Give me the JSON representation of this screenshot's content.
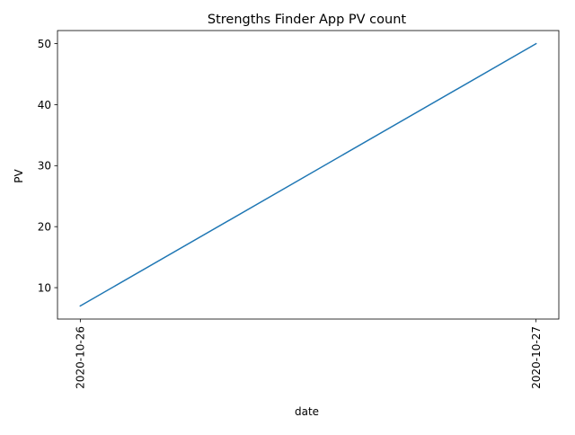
{
  "chart_data": {
    "type": "line",
    "title": "Strengths Finder App PV count",
    "xlabel": "date",
    "ylabel": "PV",
    "x": [
      "2020-10-26",
      "2020-10-27"
    ],
    "series": [
      {
        "values": [
          7,
          50
        ],
        "color": "#1f77b4"
      }
    ],
    "x_range": [
      "2020-10-26",
      "2020-10-27"
    ],
    "ylim": [
      4.85,
      52.15
    ],
    "yticks": [
      10,
      20,
      30,
      40,
      50
    ],
    "yticks_labels": [
      "10",
      "20",
      "30",
      "40",
      "50"
    ],
    "xtick_rotation": "vertical",
    "grid": false,
    "legend": false
  }
}
